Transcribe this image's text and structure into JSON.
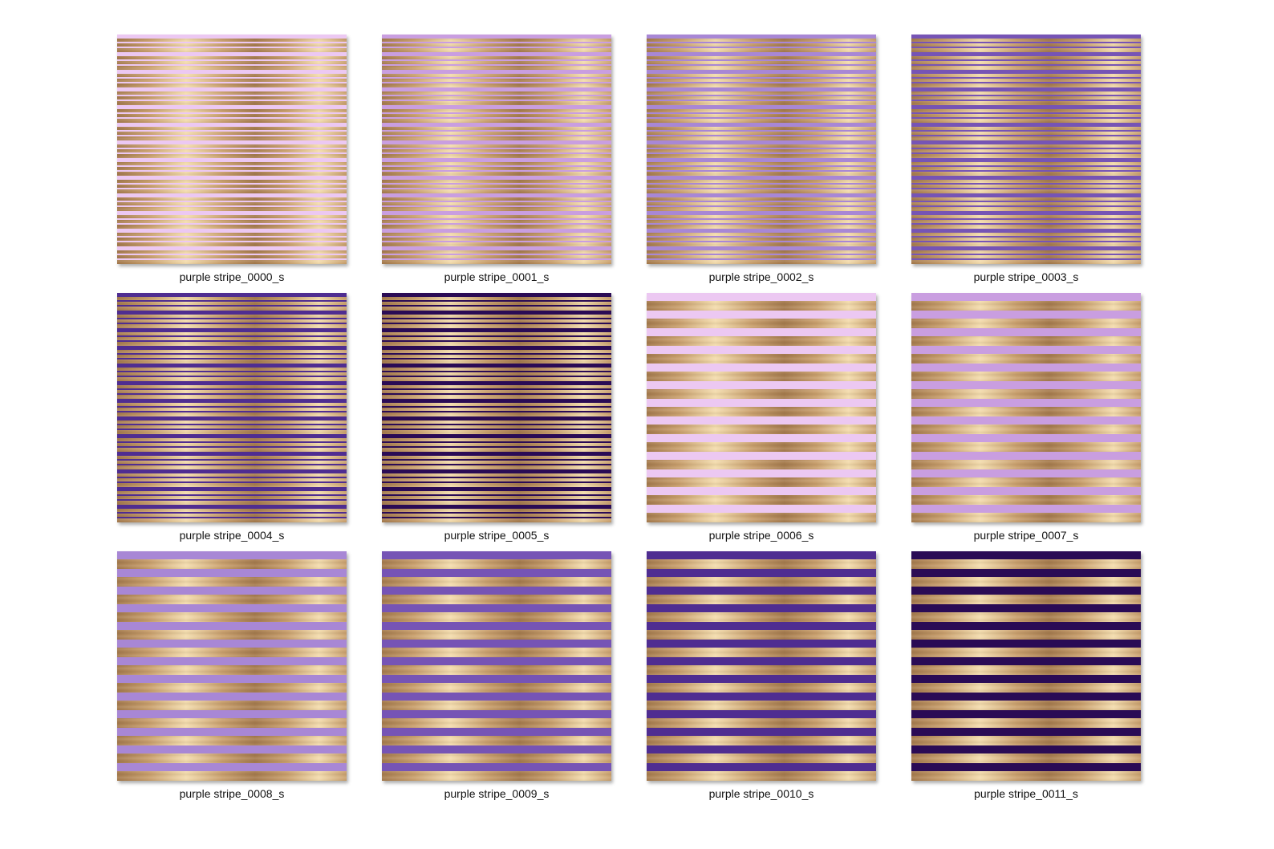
{
  "files": [
    {
      "name": "purple stripe_0000_s",
      "purple": "#ecc8f2",
      "style": "thin"
    },
    {
      "name": "purple stripe_0001_s",
      "purple": "#c99ee0",
      "style": "thin"
    },
    {
      "name": "purple stripe_0002_s",
      "purple": "#a887d5",
      "style": "thin"
    },
    {
      "name": "purple stripe_0003_s",
      "purple": "#7654b5",
      "style": "thin"
    },
    {
      "name": "purple stripe_0004_s",
      "purple": "#4f2d91",
      "style": "thin"
    },
    {
      "name": "purple stripe_0005_s",
      "purple": "#2a0b55",
      "style": "thin"
    },
    {
      "name": "purple stripe_0006_s",
      "purple": "#ecc8f2",
      "style": "wide"
    },
    {
      "name": "purple stripe_0007_s",
      "purple": "#c99ee0",
      "style": "wide"
    },
    {
      "name": "purple stripe_0008_s",
      "purple": "#a887d5",
      "style": "wide"
    },
    {
      "name": "purple stripe_0009_s",
      "purple": "#7654b5",
      "style": "wide"
    },
    {
      "name": "purple stripe_0010_s",
      "purple": "#4f2d91",
      "style": "wide"
    },
    {
      "name": "purple stripe_0011_s",
      "purple": "#2a0b55",
      "style": "wide"
    }
  ],
  "gold": {
    "dark": "#a67c4f",
    "mid": "#c9a06e",
    "light": "#f3dcae"
  }
}
